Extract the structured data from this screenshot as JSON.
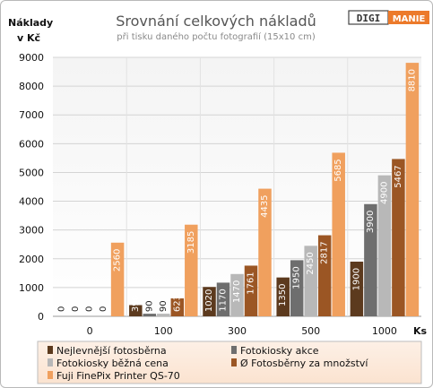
{
  "chart_data": {
    "type": "bar",
    "title": "Srovnání celkových nákladů",
    "subtitle": "při tisku daného počtu fotografií (15x10 cm)",
    "ylabel_lines": [
      "Náklady",
      "v Kč"
    ],
    "xlabel": "Ks",
    "categories": [
      "0",
      "100",
      "300",
      "500",
      "1000"
    ],
    "ylim": [
      0,
      9000
    ],
    "yticks": [
      0,
      1000,
      2000,
      3000,
      4000,
      5000,
      6000,
      7000,
      8000,
      9000
    ],
    "grid": true,
    "legend_position": "bottom",
    "series": [
      {
        "name": "Nejlevnější fotosběrna",
        "color": "#5c3a1e",
        "values": [
          0,
          390,
          1020,
          1350,
          1900
        ]
      },
      {
        "name": "Fotokiosky akce",
        "color": "#6e6e6e",
        "values": [
          0,
          90,
          1170,
          1950,
          3900
        ]
      },
      {
        "name": "Fotokiosky běžná cena",
        "color": "#b8b8b8",
        "values": [
          0,
          90,
          1470,
          2450,
          4900
        ]
      },
      {
        "name": "Ø Fotosběrny za množství",
        "color": "#9b5624",
        "values": [
          0,
          623,
          1761,
          2817,
          5467
        ]
      },
      {
        "name": "Fuji FinePix Printer QS-70",
        "color": "#f0a05e",
        "values": [
          2560,
          3185,
          4435,
          5685,
          8810
        ]
      }
    ]
  },
  "logo": {
    "left": "DIGI",
    "right": "MANIE"
  }
}
